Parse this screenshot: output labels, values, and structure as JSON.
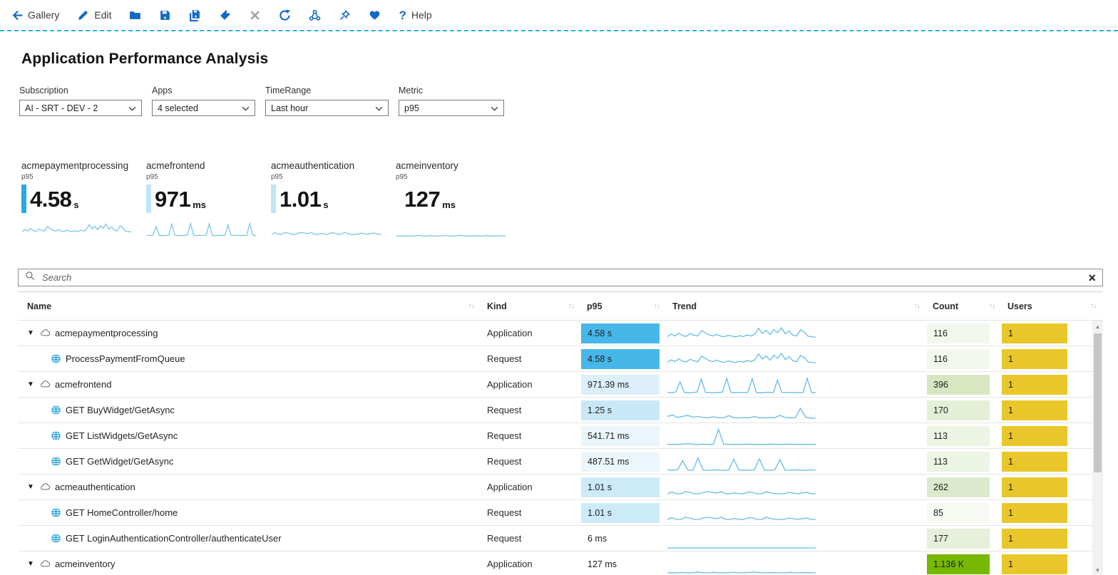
{
  "toolbar": {
    "items": [
      {
        "id": "gallery",
        "icon": "back",
        "label": "Gallery"
      },
      {
        "id": "edit",
        "icon": "pencil",
        "label": "Edit"
      },
      {
        "id": "open",
        "icon": "folder"
      },
      {
        "id": "save",
        "icon": "save"
      },
      {
        "id": "save-as",
        "icon": "saveall"
      },
      {
        "id": "tag",
        "icon": "tag"
      },
      {
        "id": "close",
        "icon": "close",
        "disabled": true
      },
      {
        "id": "refresh",
        "icon": "refresh"
      },
      {
        "id": "share",
        "icon": "share"
      },
      {
        "id": "pin",
        "icon": "pin"
      },
      {
        "id": "favorite",
        "icon": "heart"
      },
      {
        "id": "help",
        "icon": "help",
        "label": "Help"
      }
    ]
  },
  "page": {
    "title": "Application Performance Analysis"
  },
  "filters": [
    {
      "id": "subscription",
      "label": "Subscription",
      "value": "AI -  SRT - DEV - 2"
    },
    {
      "id": "apps",
      "label": "Apps",
      "value": "4 selected"
    },
    {
      "id": "timerange",
      "label": "TimeRange",
      "value": "Last hour"
    },
    {
      "id": "metric",
      "label": "Metric",
      "value": "p95"
    }
  ],
  "tiles": [
    {
      "name": "acmepaymentprocessing",
      "metric": "p95",
      "value": "4.58",
      "unit": "s",
      "accent": "#29a9e2",
      "trend": "payment"
    },
    {
      "name": "acmefrontend",
      "metric": "p95",
      "value": "971",
      "unit": "ms",
      "accent": "#bfe5f6",
      "trend": "frontend"
    },
    {
      "name": "acmeauthentication",
      "metric": "p95",
      "value": "1.01",
      "unit": "s",
      "accent": "#bfe5f6",
      "trend": "auth"
    },
    {
      "name": "acmeinventory",
      "metric": "p95",
      "value": "127",
      "unit": "ms",
      "accent": "transparent",
      "trend": "inventory"
    }
  ],
  "search": {
    "placeholder": "Search"
  },
  "table": {
    "columns": [
      {
        "label": "Name"
      },
      {
        "label": "Kind"
      },
      {
        "label": "p95"
      },
      {
        "label": "Trend"
      },
      {
        "label": "Count"
      },
      {
        "label": "Users"
      }
    ],
    "rows": [
      {
        "level": 0,
        "icon": "cloud",
        "expander": true,
        "name": "acmepaymentprocessing",
        "kind": "Application",
        "p95": "4.58 s",
        "p95_bg": "#47b7ea",
        "trend": "payment",
        "count": "116",
        "count_bg": "#f3f8ee",
        "users": "1",
        "users_bg": "#e9c72a"
      },
      {
        "level": 1,
        "icon": "globe",
        "name": "ProcessPaymentFromQueue",
        "kind": "Request",
        "p95": "4.58 s",
        "p95_bg": "#47b7ea",
        "trend": "payment",
        "count": "116",
        "count_bg": "#f3f8ee",
        "users": "1",
        "users_bg": "#e9c72a"
      },
      {
        "level": 0,
        "icon": "cloud",
        "expander": true,
        "name": "acmefrontend",
        "kind": "Application",
        "p95": "971.39 ms",
        "p95_bg": "#ddeffa",
        "trend": "frontend",
        "count": "396",
        "count_bg": "#d8e7c1",
        "users": "1",
        "users_bg": "#e9c72a"
      },
      {
        "level": 1,
        "icon": "globe",
        "name": "GET BuyWidget/GetAsync",
        "kind": "Request",
        "p95": "1.25 s",
        "p95_bg": "#c9e8f7",
        "trend": "buy",
        "count": "170",
        "count_bg": "#e4efd6",
        "users": "1",
        "users_bg": "#e9c72a"
      },
      {
        "level": 1,
        "icon": "globe",
        "name": "GET ListWidgets/GetAsync",
        "kind": "Request",
        "p95": "541.71 ms",
        "p95_bg": "#eaf5fc",
        "trend": "list",
        "count": "113",
        "count_bg": "#ecf4e3",
        "users": "1",
        "users_bg": "#e9c72a"
      },
      {
        "level": 1,
        "icon": "globe",
        "name": "GET GetWidget/GetAsync",
        "kind": "Request",
        "p95": "487.51 ms",
        "p95_bg": "#ecf6fc",
        "trend": "get",
        "count": "113",
        "count_bg": "#ecf4e3",
        "users": "1",
        "users_bg": "#e9c72a"
      },
      {
        "level": 0,
        "icon": "cloud",
        "expander": true,
        "name": "acmeauthentication",
        "kind": "Application",
        "p95": "1.01 s",
        "p95_bg": "#cdeaf9",
        "trend": "auth",
        "count": "262",
        "count_bg": "#dde9cd",
        "users": "1",
        "users_bg": "#e9c72a"
      },
      {
        "level": 1,
        "icon": "globe",
        "name": "GET HomeController/home",
        "kind": "Request",
        "p95": "1.01 s",
        "p95_bg": "#cdeaf9",
        "trend": "auth",
        "count": "85",
        "count_bg": "#f6faf2",
        "users": "1",
        "users_bg": "#e9c72a"
      },
      {
        "level": 1,
        "icon": "globe",
        "name": "GET LoginAuthenticationController/authenticateUser",
        "kind": "Request",
        "p95": "6 ms",
        "p95_bg": "",
        "trend": "flat",
        "count": "177",
        "count_bg": "#e6f0da",
        "users": "1",
        "users_bg": "#e9c72a"
      },
      {
        "level": 0,
        "icon": "cloud",
        "expander": true,
        "name": "acmeinventory",
        "kind": "Application",
        "p95": "127 ms",
        "p95_bg": "",
        "trend": "inventory",
        "count": "1.136 K",
        "count_bg": "#76b900",
        "users": "1",
        "users_bg": "#e9c72a"
      }
    ]
  },
  "trends": {
    "payment": [
      38,
      52,
      42,
      58,
      44,
      40,
      55,
      46,
      42,
      72,
      60,
      47,
      42,
      50,
      41,
      38,
      46,
      41,
      37,
      44,
      39,
      48,
      42,
      52,
      85,
      56,
      74,
      50,
      78,
      60,
      88,
      54,
      70,
      46,
      42,
      76,
      64,
      40,
      38,
      35
    ],
    "frontend": [
      14,
      11,
      16,
      72,
      13,
      11,
      12,
      15,
      88,
      13,
      12,
      11,
      13,
      15,
      92,
      13,
      11,
      14,
      12,
      13,
      90,
      12,
      11,
      13,
      14,
      12,
      82,
      13,
      12,
      14,
      11,
      13,
      12,
      92,
      13,
      11
    ],
    "auth": [
      20,
      30,
      20,
      20,
      32,
      28,
      20,
      20,
      28,
      32,
      28,
      24,
      32,
      20,
      20,
      25,
      20,
      20,
      30,
      28,
      20,
      20,
      32,
      25,
      20,
      20,
      20,
      28,
      24,
      20,
      25,
      28,
      20,
      20
    ],
    "inventory": [
      8,
      9,
      8,
      10,
      8,
      9,
      13,
      9,
      8,
      11,
      9,
      8,
      9,
      12,
      8,
      9,
      10,
      13,
      10,
      8,
      9,
      10,
      8,
      9,
      11,
      8,
      9,
      10,
      9,
      8
    ],
    "buy": [
      22,
      30,
      17,
      23,
      28,
      18,
      22,
      16,
      15,
      20,
      15,
      14,
      27,
      15,
      14,
      16,
      15,
      22,
      15,
      14,
      17,
      15,
      28,
      16,
      15,
      14,
      68,
      19,
      13,
      12
    ],
    "list": [
      9,
      10,
      9,
      11,
      13,
      10,
      9,
      11,
      9,
      10,
      95,
      11,
      9,
      10,
      9,
      10,
      11,
      9,
      10,
      9,
      11,
      10,
      9,
      10,
      11,
      9,
      10,
      9,
      10,
      9
    ],
    "get": [
      10,
      9,
      11,
      62,
      9,
      8,
      76,
      9,
      8,
      10,
      9,
      8,
      9,
      70,
      9,
      8,
      9,
      10,
      72,
      9,
      8,
      10,
      68,
      9,
      8,
      10,
      9,
      8,
      9,
      10
    ],
    "flat": [
      4,
      4,
      4,
      4,
      4,
      4,
      4,
      4,
      4,
      4,
      4,
      4,
      4,
      4,
      4,
      4,
      4,
      4,
      4,
      4
    ]
  },
  "scrollbar": {
    "up": "▲",
    "down": "▼"
  },
  "colors": {
    "accent_blue": "#1269c8",
    "dashed_line": "#27b3ea",
    "spark_tile": "#7cc5e9",
    "spark_row": "#63bce6"
  }
}
